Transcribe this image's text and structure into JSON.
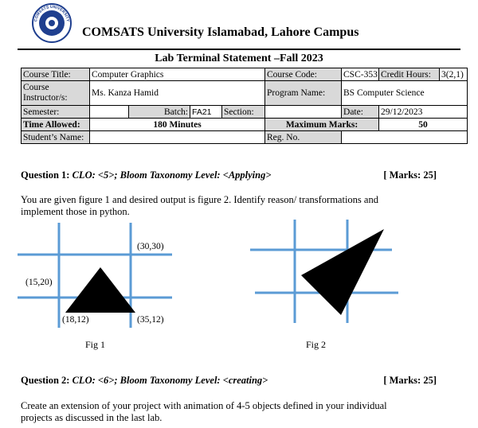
{
  "header": {
    "logo_text_top": "COMSATS UNIVERSITY",
    "logo_text_bottom": "ISLAMABAD",
    "university": "COMSATS University Islamabad, Lahore Campus",
    "lab_title": "Lab Terminal Statement –Fall 2023"
  },
  "info": {
    "course_title_label": "Course Title:",
    "course_title": "Computer Graphics",
    "course_code_label": "Course Code:",
    "course_code": "CSC-353",
    "credit_hours_label": "Credit Hours:",
    "credit_hours": "3(2,1)",
    "instructor_label": "Course Instructor/s:",
    "instructor": "Ms. Kanza Hamid",
    "program_label": "Program Name:",
    "program": "BS Computer Science",
    "semester_label": "Semester:",
    "batch_label": "Batch:",
    "batch": "FA21",
    "section_label": "Section:",
    "date_label": "Date:",
    "date": "29/12/2023",
    "time_allowed_label": "Time Allowed:",
    "time_allowed": "180 Minutes",
    "max_marks_label": "Maximum Marks:",
    "max_marks": "50",
    "student_name_label": "Student’s Name:",
    "reg_no_label": "Reg. No."
  },
  "q1": {
    "label": "Question 1:",
    "clo": "CLO: <5>; Bloom Taxonomy Level: <Applying>",
    "marks": "[ Marks: 25]",
    "text": "You are given figure 1 and desired output is figure 2. Identify reason/ transformations and implement those in python."
  },
  "fig1": {
    "caption": "Fig 1",
    "label_30_30": "(30,30)",
    "label_15_20": "(15,20)",
    "label_18_12": "(18,12)",
    "label_35_12": "(35,12)"
  },
  "fig2": {
    "caption": "Fig 2"
  },
  "q2": {
    "label": "Question 2:",
    "clo": "CLO: <6>; Bloom Taxonomy Level: <creating>",
    "marks": "[ Marks: 25]",
    "text": "Create an extension of your project with animation of 4-5 objects defined in your individual projects as discussed in the last lab."
  },
  "colors": {
    "grid_line": "#5b9bd5",
    "shape": "#000000",
    "label_fill": "#d9d9d9",
    "logo": "#1f3f8f"
  }
}
